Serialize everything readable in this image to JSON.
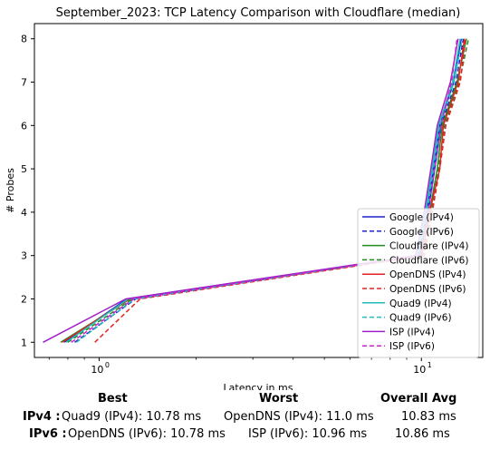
{
  "chart_data": {
    "type": "line",
    "title": "September_2023: TCP Latency Comparison with Cloudflare (median)",
    "xlabel": "Latency in ms",
    "ylabel": "# Probes",
    "xscale": "log",
    "xlim": [
      0.63,
      15.5
    ],
    "ylim": [
      0.65,
      8.35
    ],
    "yticks": [
      1,
      2,
      3,
      4,
      5,
      6,
      7,
      8
    ],
    "xticks": [
      {
        "value": 1,
        "label": "10",
        "sup": "0"
      },
      {
        "value": 10,
        "label": "10",
        "sup": "1"
      }
    ],
    "legend_position": "lower right",
    "series": [
      {
        "name": "Google (IPv4)",
        "color": "#2222cc",
        "dash": false,
        "points": [
          [
            0.78,
            1
          ],
          [
            1.22,
            2
          ],
          [
            9.8,
            3
          ],
          [
            10.4,
            4
          ],
          [
            10.9,
            5
          ],
          [
            11.4,
            6
          ],
          [
            12.6,
            7
          ],
          [
            13.3,
            8
          ]
        ]
      },
      {
        "name": "Google (IPv6)",
        "color": "#2222cc",
        "dash": true,
        "points": [
          [
            0.84,
            1
          ],
          [
            1.3,
            2
          ],
          [
            9.9,
            3
          ],
          [
            10.5,
            4
          ],
          [
            11.0,
            5
          ],
          [
            11.5,
            6
          ],
          [
            12.8,
            7
          ],
          [
            13.5,
            8
          ]
        ]
      },
      {
        "name": "Cloudflare (IPv4)",
        "color": "#228b22",
        "dash": false,
        "points": [
          [
            0.76,
            1
          ],
          [
            1.25,
            2
          ],
          [
            10.0,
            3
          ],
          [
            10.6,
            4
          ],
          [
            11.2,
            5
          ],
          [
            11.6,
            6
          ],
          [
            12.9,
            7
          ],
          [
            13.8,
            8
          ]
        ]
      },
      {
        "name": "Cloudflare (IPv6)",
        "color": "#228b22",
        "dash": true,
        "points": [
          [
            0.8,
            1
          ],
          [
            1.27,
            2
          ],
          [
            10.1,
            3
          ],
          [
            10.7,
            4
          ],
          [
            11.3,
            5
          ],
          [
            11.8,
            6
          ],
          [
            13.1,
            7
          ],
          [
            14.0,
            8
          ]
        ]
      },
      {
        "name": "OpenDNS (IPv4)",
        "color": "#e52222",
        "dash": false,
        "points": [
          [
            0.77,
            1
          ],
          [
            1.24,
            2
          ],
          [
            10.0,
            3
          ],
          [
            10.6,
            4
          ],
          [
            11.4,
            5
          ],
          [
            11.7,
            6
          ],
          [
            13.0,
            7
          ],
          [
            13.6,
            8
          ]
        ]
      },
      {
        "name": "OpenDNS (IPv6)",
        "color": "#e52222",
        "dash": true,
        "points": [
          [
            0.97,
            1
          ],
          [
            1.34,
            2
          ],
          [
            10.2,
            3
          ],
          [
            10.8,
            4
          ],
          [
            11.4,
            5
          ],
          [
            11.9,
            6
          ],
          [
            13.2,
            7
          ],
          [
            13.7,
            8
          ]
        ]
      },
      {
        "name": "Quad9 (IPv4)",
        "color": "#22bbbb",
        "dash": false,
        "points": [
          [
            0.79,
            1
          ],
          [
            1.23,
            2
          ],
          [
            9.7,
            3
          ],
          [
            10.3,
            4
          ],
          [
            10.8,
            5
          ],
          [
            11.3,
            6
          ],
          [
            12.5,
            7
          ],
          [
            13.2,
            8
          ]
        ]
      },
      {
        "name": "Quad9 (IPv6)",
        "color": "#22bbbb",
        "dash": true,
        "points": [
          [
            0.85,
            1
          ],
          [
            1.29,
            2
          ],
          [
            9.8,
            3
          ],
          [
            10.4,
            4
          ],
          [
            10.9,
            5
          ],
          [
            11.4,
            6
          ],
          [
            12.6,
            7
          ],
          [
            13.4,
            8
          ]
        ]
      },
      {
        "name": "ISP (IPv4)",
        "color": "#a020c8",
        "dash": false,
        "points": [
          [
            0.67,
            1
          ],
          [
            1.21,
            2
          ],
          [
            9.6,
            3
          ],
          [
            10.2,
            4
          ],
          [
            10.7,
            5
          ],
          [
            11.2,
            6
          ],
          [
            12.3,
            7
          ],
          [
            13.0,
            8
          ]
        ]
      },
      {
        "name": "ISP (IPv6)",
        "color": "#cc22cc",
        "dash": true,
        "points": [
          [
            0.82,
            1
          ],
          [
            1.28,
            2
          ],
          [
            9.9,
            3
          ],
          [
            10.5,
            4
          ],
          [
            11.0,
            5
          ],
          [
            11.5,
            6
          ],
          [
            12.4,
            7
          ],
          [
            12.9,
            8
          ]
        ]
      }
    ]
  },
  "summary": {
    "headers": {
      "best": "Best",
      "worst": "Worst",
      "avg": "Overall Avg"
    },
    "rows": [
      {
        "label": "IPv4 :",
        "best": "Quad9 (IPv4): 10.78 ms",
        "worst": "OpenDNS (IPv4): 11.0 ms",
        "avg": "10.83 ms"
      },
      {
        "label": "IPv6 :",
        "best": "OpenDNS (IPv6): 10.78 ms",
        "worst": "ISP (IPv6): 10.96 ms",
        "avg": "10.86 ms"
      }
    ]
  }
}
